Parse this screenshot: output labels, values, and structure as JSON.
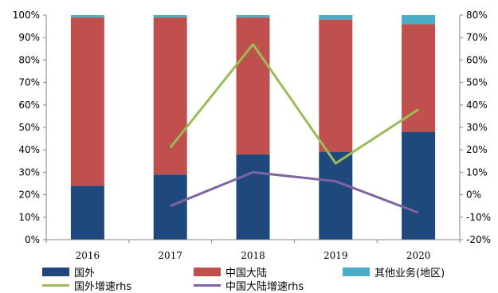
{
  "chart_data": {
    "type": "bar",
    "stacked": true,
    "categories": [
      "2016",
      "2017",
      "2018",
      "2019",
      "2020"
    ],
    "left_axis": {
      "ylim": [
        0,
        100
      ],
      "ticks": [
        "0%",
        "10%",
        "20%",
        "30%",
        "40%",
        "50%",
        "60%",
        "70%",
        "80%",
        "90%",
        "100%"
      ]
    },
    "right_axis": {
      "ylim": [
        -20,
        80
      ],
      "ticks": [
        "-20%",
        "-10%",
        "0%",
        "10%",
        "20%",
        "30%",
        "40%",
        "50%",
        "60%",
        "70%",
        "80%"
      ]
    },
    "bar_series": [
      {
        "name": "国外",
        "color": "#1f497d",
        "values": [
          24,
          29,
          38,
          39,
          48
        ]
      },
      {
        "name": "中国大陆",
        "color": "#c0504d",
        "values": [
          75,
          70,
          61,
          59,
          48
        ]
      },
      {
        "name": "其他业务(地区)",
        "color": "#4bacc6",
        "values": [
          1,
          1,
          1,
          2,
          4
        ]
      }
    ],
    "line_series": [
      {
        "name": "国外增速rhs",
        "color": "#9bbb59",
        "axis": "right",
        "values": [
          null,
          21,
          67,
          14,
          38
        ]
      },
      {
        "name": "中国大陆增速rhs",
        "color": "#8064a2",
        "axis": "right",
        "values": [
          null,
          -5,
          10,
          6,
          -8
        ]
      }
    ],
    "grid": false,
    "legend_position": "bottom"
  }
}
